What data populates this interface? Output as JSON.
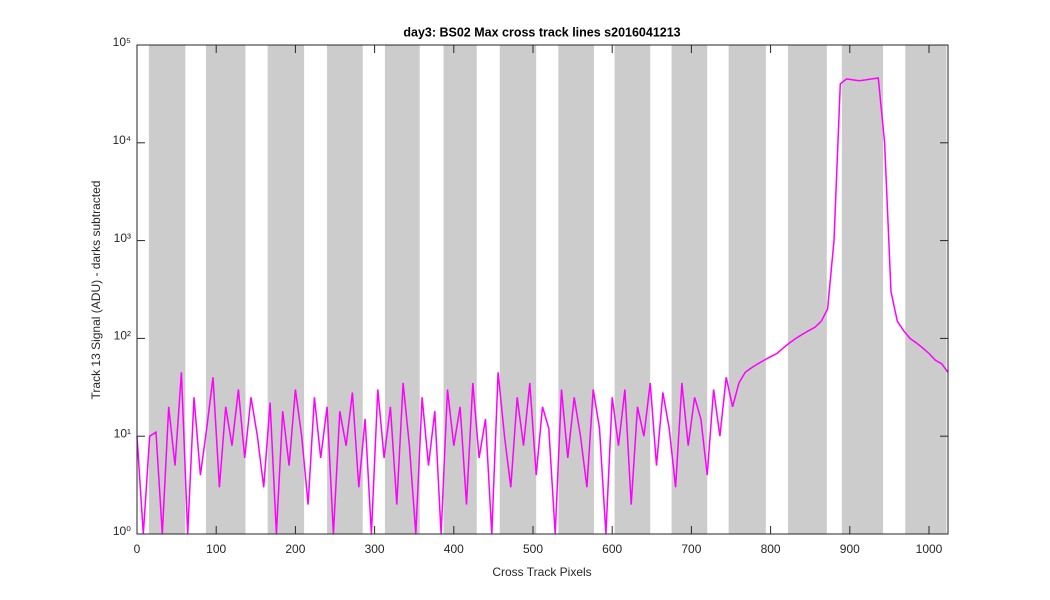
{
  "chart_data": {
    "type": "line",
    "title": "day3: BS02  Max cross track lines  s2016041213",
    "xlabel": "Cross Track Pixels",
    "ylabel": "Track 13 Signal (ADU) - darks subtracted",
    "xlim": [
      0,
      1024
    ],
    "xticks": [
      0,
      100,
      200,
      300,
      400,
      500,
      600,
      700,
      800,
      900,
      1000
    ],
    "ylim": [
      1,
      100000
    ],
    "yscale": "log",
    "yticks": [
      {
        "value": 1,
        "label": "10⁰"
      },
      {
        "value": 10,
        "label": "10¹"
      },
      {
        "value": 100,
        "label": "10²"
      },
      {
        "value": 1000,
        "label": "10³"
      },
      {
        "value": 10000,
        "label": "10⁴"
      },
      {
        "value": 100000,
        "label": "10⁵"
      }
    ],
    "band_color": "#cccccc",
    "bands": [
      [
        15,
        61
      ],
      [
        87,
        137
      ],
      [
        165,
        211
      ],
      [
        240,
        285
      ],
      [
        313,
        357
      ],
      [
        387,
        429
      ],
      [
        458,
        504
      ],
      [
        532,
        577
      ],
      [
        603,
        648
      ],
      [
        675,
        720
      ],
      [
        747,
        794
      ],
      [
        822,
        871
      ],
      [
        890,
        942
      ],
      [
        970,
        1022
      ]
    ],
    "series": [
      {
        "color": "#ff00ff",
        "x": [
          0,
          8,
          16,
          24,
          32,
          40,
          48,
          56,
          64,
          72,
          80,
          88,
          96,
          104,
          112,
          120,
          128,
          136,
          144,
          152,
          160,
          168,
          176,
          184,
          192,
          200,
          208,
          216,
          224,
          232,
          240,
          248,
          256,
          264,
          272,
          280,
          288,
          296,
          304,
          312,
          320,
          328,
          336,
          344,
          352,
          360,
          368,
          376,
          384,
          392,
          400,
          408,
          416,
          424,
          432,
          440,
          448,
          456,
          464,
          472,
          480,
          488,
          496,
          504,
          512,
          520,
          528,
          536,
          544,
          552,
          560,
          568,
          576,
          584,
          592,
          600,
          608,
          616,
          624,
          632,
          640,
          648,
          656,
          664,
          672,
          680,
          688,
          696,
          704,
          712,
          720,
          728,
          736,
          744,
          752,
          760,
          768,
          776,
          784,
          792,
          800,
          808,
          816,
          824,
          832,
          840,
          848,
          856,
          864,
          872,
          880,
          888,
          896,
          904,
          912,
          920,
          928,
          936,
          944,
          952,
          960,
          968,
          976,
          984,
          992,
          1000,
          1008,
          1016,
          1024
        ],
        "values": [
          10,
          1,
          10,
          11,
          1,
          20,
          5,
          45,
          1,
          25,
          4,
          12,
          40,
          3,
          20,
          8,
          30,
          6,
          25,
          10,
          3,
          22,
          1,
          18,
          5,
          30,
          10,
          2,
          25,
          6,
          20,
          1,
          18,
          8,
          28,
          3,
          15,
          1,
          30,
          6,
          20,
          2,
          35,
          8,
          1,
          25,
          5,
          18,
          1,
          30,
          8,
          20,
          2,
          35,
          6,
          15,
          1,
          45,
          10,
          3,
          25,
          8,
          35,
          4,
          20,
          12,
          1,
          30,
          6,
          25,
          10,
          3,
          30,
          12,
          1,
          25,
          8,
          30,
          2,
          20,
          10,
          35,
          5,
          28,
          12,
          3,
          35,
          8,
          25,
          15,
          4,
          30,
          10,
          40,
          20,
          35,
          45,
          50,
          55,
          60,
          65,
          70,
          80,
          90,
          100,
          110,
          120,
          130,
          150,
          200,
          1000,
          40000,
          45000,
          44000,
          43000,
          44000,
          45000,
          46000,
          10000,
          300,
          150,
          120,
          100,
          90,
          80,
          70,
          60,
          55,
          45
        ]
      }
    ]
  }
}
